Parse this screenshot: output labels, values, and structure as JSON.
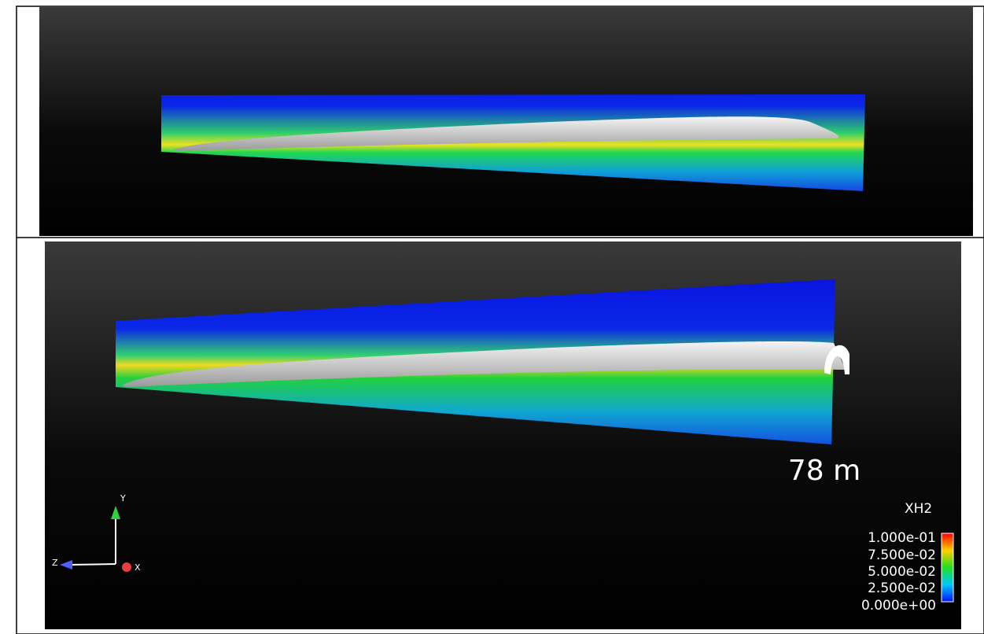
{
  "bottom_panel": {
    "annotation": "78 m",
    "colorbar": {
      "title": "XH2",
      "labels": [
        "1.000e-01",
        "7.500e-02",
        "5.000e-02",
        "2.500e-02",
        "0.000e+00"
      ]
    },
    "axes": {
      "y": "Y",
      "z": "Z",
      "x": "X"
    }
  }
}
